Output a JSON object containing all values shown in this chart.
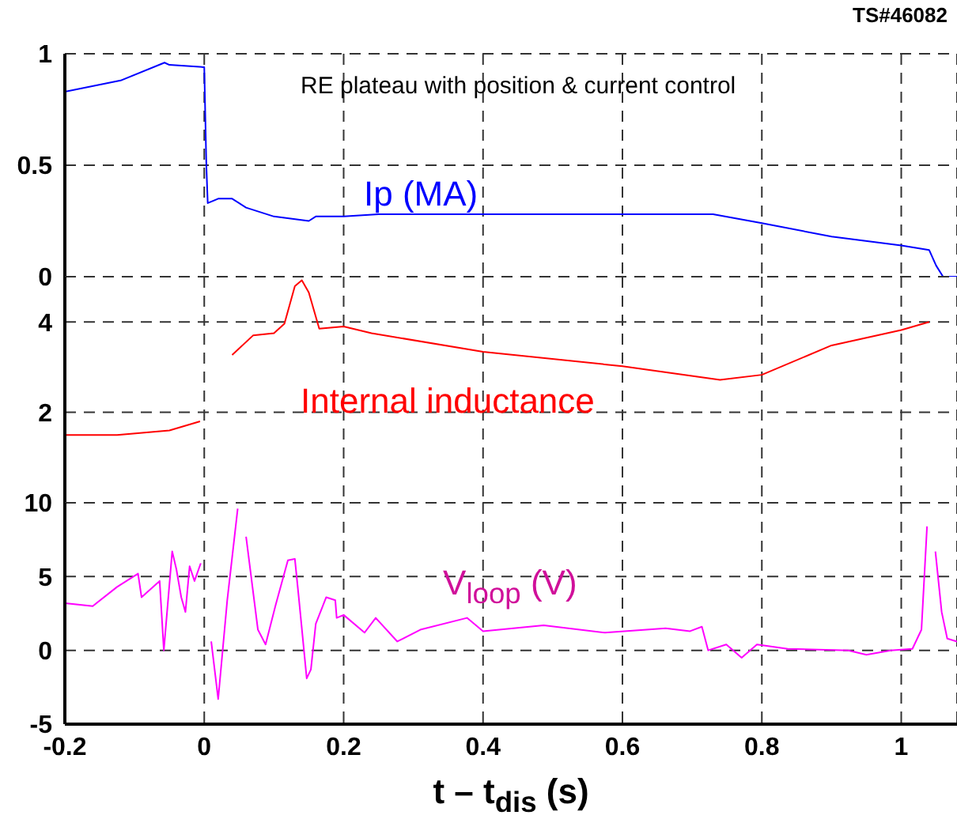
{
  "chart_data": [
    {
      "type": "line",
      "annotations": [
        "TS#46082",
        "RE plateau with position & current control"
      ],
      "series": [
        {
          "name": "Ip (MA)",
          "color": "#0000ff",
          "x": [
            -0.2,
            -0.12,
            -0.057,
            -0.05,
            0,
            0.003,
            0.005,
            0.02,
            0.04,
            0.06,
            0.1,
            0.15,
            0.16,
            0.2,
            0.25,
            0.73,
            0.8,
            0.9,
            1.0,
            1.04,
            1.05,
            1.06,
            1.08
          ],
          "values": [
            0.83,
            0.88,
            0.96,
            0.95,
            0.94,
            0.5,
            0.33,
            0.35,
            0.35,
            0.31,
            0.27,
            0.25,
            0.27,
            0.27,
            0.28,
            0.28,
            0.24,
            0.18,
            0.14,
            0.12,
            0.05,
            0,
            0
          ]
        }
      ],
      "xlim": [
        -0.2,
        1.08
      ],
      "xticks": [
        -0.2,
        0,
        0.2,
        0.4,
        0.6,
        0.8,
        1
      ],
      "ylim": [
        0,
        1
      ],
      "yticks": [
        0,
        0.5,
        1
      ],
      "grid": true,
      "tick_labels": "y"
    },
    {
      "type": "line",
      "series": [
        {
          "name": "Internal inductance",
          "color": "#ff0000",
          "x": [
            -0.2,
            -0.125,
            -0.05,
            -0.006,
            0.003,
            0.013,
            0.04,
            0.07,
            0.1,
            0.115,
            0.13,
            0.14,
            0.15,
            0.165,
            0.2,
            0.24,
            0.4,
            0.6,
            0.74,
            0.8,
            0.9,
            1.0,
            1.04
          ],
          "values": [
            1.5,
            1.5,
            1.6,
            1.8,
            null,
            null,
            3.27,
            3.7,
            3.75,
            3.96,
            4.79,
            4.92,
            4.65,
            3.85,
            3.9,
            3.75,
            3.34,
            3.02,
            2.72,
            2.83,
            3.48,
            3.82,
            4.0
          ]
        }
      ],
      "xlim": [
        -0.2,
        1.08
      ],
      "xticks": [
        -0.2,
        0,
        0.2,
        0.4,
        0.6,
        0.8,
        1
      ],
      "ylim": [
        0,
        5
      ],
      "yticks": [
        2,
        4
      ],
      "grid": true,
      "tick_labels": "y"
    },
    {
      "type": "line",
      "xlabel": "t – t$_{dis}$ (s)",
      "series": [
        {
          "name": "V$_{loop}$ (V)",
          "color": "#ff00ff",
          "x": [
            -0.2,
            -0.16,
            -0.125,
            -0.095,
            -0.09,
            -0.064,
            -0.058,
            -0.046,
            -0.04,
            -0.033,
            -0.027,
            -0.021,
            -0.014,
            -0.005,
            0,
            0.005,
            0.01,
            0.02,
            0.033,
            0.048,
            0.055,
            0.06,
            0.077,
            0.088,
            0.102,
            0.12,
            0.13,
            0.136,
            0.147,
            0.153,
            0.16,
            0.175,
            0.188,
            0.19,
            0.2,
            0.23,
            0.246,
            0.277,
            0.31,
            0.377,
            0.4,
            0.487,
            0.575,
            0.662,
            0.697,
            0.714,
            0.723,
            0.749,
            0.771,
            0.793,
            0.837,
            0.924,
            0.95,
            0.985,
            1.016,
            1.029,
            1.037,
            1.04,
            1.049,
            1.058,
            1.066,
            1.08
          ],
          "values": [
            3.2,
            3.0,
            4.3,
            5.2,
            3.6,
            4.7,
            0,
            6.7,
            5.5,
            3.6,
            2.6,
            5.7,
            4.7,
            5.9,
            null,
            null,
            0.6,
            -3.3,
            3.4,
            9.6,
            null,
            7.7,
            1.4,
            0.4,
            3.0,
            6.1,
            6.2,
            3.4,
            -1.9,
            -1.3,
            1.8,
            3.6,
            3.4,
            2.2,
            2.4,
            1.2,
            2.2,
            0.6,
            1.4,
            2.2,
            1.3,
            1.7,
            1.2,
            1.5,
            1.3,
            1.6,
            0,
            0.4,
            -0.5,
            0.4,
            0.1,
            0,
            -0.3,
            0,
            0.1,
            1.4,
            8.4,
            null,
            6.7,
            2.6,
            0.8,
            0.6
          ]
        }
      ],
      "xlim": [
        -0.2,
        1.08
      ],
      "xticks": [
        -0.2,
        0,
        0.2,
        0.4,
        0.6,
        0.8,
        1
      ],
      "ylim": [
        -5,
        10
      ],
      "yticks": [
        -5,
        0,
        5,
        10
      ],
      "grid": true
    }
  ]
}
